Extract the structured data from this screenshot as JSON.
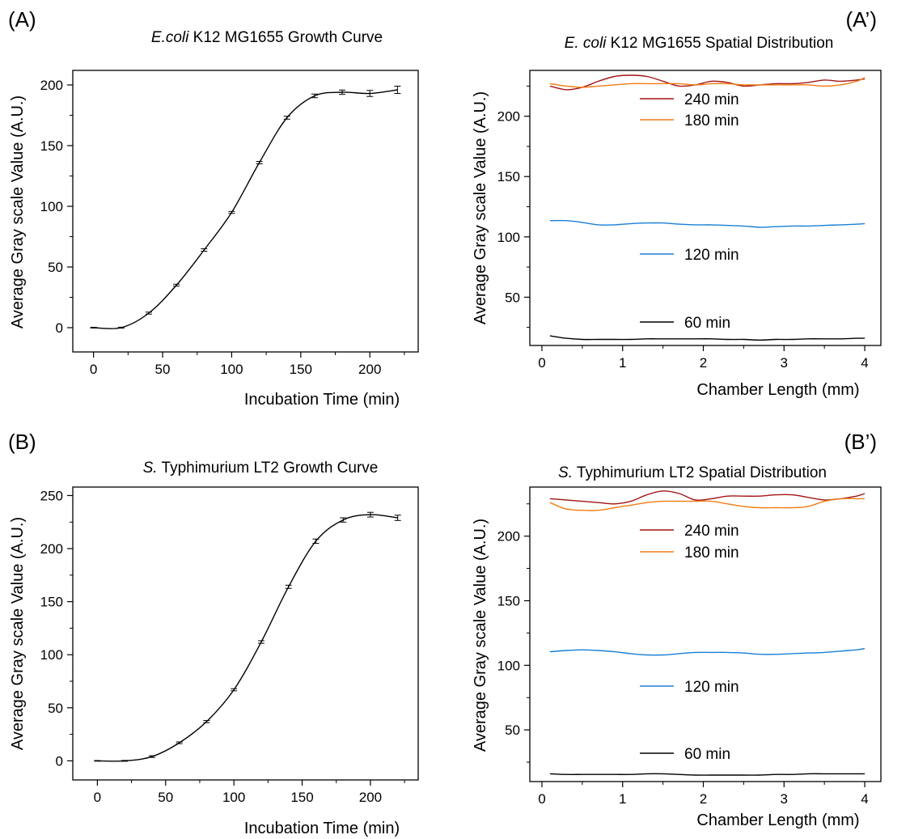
{
  "chart_data": [
    {
      "type": "line",
      "panel_label": "(A)",
      "title_italic": "E.coli",
      "title": " K12 MG1655 Growth Curve",
      "xlabel": "Incubation Time (min)",
      "ylabel": "Average Gray scale Value (A.U.)",
      "xlim": [
        -15,
        235
      ],
      "ylim": [
        -20,
        212
      ],
      "xticks": [
        0,
        50,
        100,
        150,
        200
      ],
      "yticks": [
        0,
        50,
        100,
        150,
        200
      ],
      "error_bars": true,
      "series": [
        {
          "color": "#000000",
          "x": [
            0,
            20,
            40,
            60,
            80,
            100,
            120,
            140,
            160,
            180,
            200,
            220
          ],
          "values": [
            0,
            0,
            12,
            35,
            64,
            95,
            136,
            173,
            191,
            194,
            193,
            196
          ],
          "errors": [
            0.3,
            0.4,
            0.8,
            0.8,
            1.0,
            0.8,
            1.0,
            1.2,
            1.5,
            1.8,
            2.5,
            3.0
          ]
        }
      ]
    },
    {
      "type": "line",
      "panel_label": "(A’)",
      "title_italic": "E. coli",
      "title": " K12 MG1655 Spatial Distribution",
      "xlabel": "Chamber Length (mm)",
      "ylabel": "Average Gray scale Value (A.U.)",
      "xlim": [
        -0.15,
        4.2
      ],
      "ylim": [
        10,
        238
      ],
      "xticks": [
        0,
        1,
        2,
        3,
        4
      ],
      "yticks": [
        50,
        100,
        150,
        200
      ],
      "series": [
        {
          "name": "240 min",
          "color": "#a31515",
          "x": [
            0.1,
            0.3,
            0.5,
            0.7,
            0.9,
            1.1,
            1.3,
            1.5,
            1.7,
            1.9,
            2.1,
            2.3,
            2.5,
            2.7,
            2.9,
            3.1,
            3.3,
            3.5,
            3.7,
            3.9,
            4.0
          ],
          "values": [
            225,
            222,
            224,
            229,
            233,
            234,
            233,
            229,
            225,
            226,
            229,
            228,
            225,
            226,
            227,
            227,
            228,
            230,
            229,
            230,
            231
          ]
        },
        {
          "name": "180 min",
          "color": "#f07c12",
          "x": [
            0.1,
            0.3,
            0.5,
            0.7,
            0.9,
            1.1,
            1.3,
            1.5,
            1.7,
            1.9,
            2.1,
            2.3,
            2.5,
            2.7,
            2.9,
            3.1,
            3.3,
            3.5,
            3.7,
            3.9,
            4.0
          ],
          "values": [
            227,
            225,
            224,
            225,
            226,
            227,
            227,
            227,
            227,
            226,
            227,
            227,
            226,
            226,
            226,
            226,
            226,
            225,
            226,
            229,
            232
          ]
        },
        {
          "name": "120 min",
          "color": "#1a7fd6",
          "x": [
            0.1,
            0.3,
            0.5,
            0.7,
            0.9,
            1.1,
            1.3,
            1.5,
            1.7,
            1.9,
            2.1,
            2.3,
            2.5,
            2.7,
            2.9,
            3.1,
            3.3,
            3.5,
            3.7,
            3.9,
            4.0
          ],
          "values": [
            113.5,
            113.5,
            112,
            110,
            110,
            111,
            111.5,
            111.5,
            110.5,
            110,
            110,
            109.5,
            109,
            108,
            108.5,
            109,
            109,
            109.5,
            110,
            110.5,
            111
          ]
        },
        {
          "name": "60 min",
          "color": "#000000",
          "x": [
            0.1,
            0.3,
            0.5,
            0.7,
            0.9,
            1.1,
            1.3,
            1.5,
            1.7,
            1.9,
            2.1,
            2.3,
            2.5,
            2.7,
            2.9,
            3.1,
            3.3,
            3.5,
            3.7,
            3.9,
            4.0
          ],
          "values": [
            18,
            16,
            15,
            15,
            15,
            15,
            15.5,
            15.5,
            15.5,
            15.5,
            15.5,
            15,
            15,
            14.5,
            15,
            15,
            15.5,
            15.5,
            15.5,
            16,
            16
          ]
        }
      ]
    },
    {
      "type": "line",
      "panel_label": "(B)",
      "title_italic": "S.",
      "title": " Typhimurium LT2 Growth Curve",
      "xlabel": "Incubation Time (min)",
      "ylabel": "Average Gray scale Value (A.U.)",
      "xlim": [
        -18,
        235
      ],
      "ylim": [
        -18,
        258
      ],
      "xticks": [
        0,
        50,
        100,
        150,
        200
      ],
      "yticks": [
        0,
        50,
        100,
        150,
        200,
        250
      ],
      "error_bars": true,
      "series": [
        {
          "color": "#000000",
          "x": [
            0,
            20,
            40,
            60,
            80,
            100,
            120,
            140,
            160,
            180,
            200,
            220
          ],
          "values": [
            0,
            0,
            4,
            17,
            37,
            67,
            112,
            164,
            207,
            227,
            232,
            229
          ],
          "errors": [
            0.3,
            0.4,
            0.8,
            0.8,
            1.0,
            1.0,
            1.2,
            1.5,
            2.0,
            2.0,
            2.2,
            2.5
          ]
        }
      ]
    },
    {
      "type": "line",
      "panel_label": "(B’)",
      "title_italic": "S.",
      "title": " Typhimurium LT2 Spatial Distribution",
      "xlabel": "Chamber Length (mm)",
      "ylabel": "Average Gray scale Value (A.U.)",
      "xlim": [
        -0.15,
        4.2
      ],
      "ylim": [
        10,
        238
      ],
      "xticks": [
        0,
        1,
        2,
        3,
        4
      ],
      "yticks": [
        50,
        100,
        150,
        200
      ],
      "series": [
        {
          "name": "240 min",
          "color": "#a31515",
          "x": [
            0.1,
            0.3,
            0.5,
            0.7,
            0.9,
            1.1,
            1.3,
            1.5,
            1.7,
            1.9,
            2.1,
            2.3,
            2.5,
            2.7,
            2.9,
            3.1,
            3.3,
            3.5,
            3.7,
            3.9,
            4.0
          ],
          "values": [
            229,
            228,
            227,
            226,
            225,
            227,
            232,
            235,
            233,
            228,
            229,
            231,
            231,
            231,
            232,
            232,
            230,
            228,
            229,
            231,
            233
          ]
        },
        {
          "name": "180 min",
          "color": "#f07c12",
          "x": [
            0.1,
            0.3,
            0.5,
            0.7,
            0.9,
            1.1,
            1.3,
            1.5,
            1.7,
            1.9,
            2.1,
            2.3,
            2.5,
            2.7,
            2.9,
            3.1,
            3.3,
            3.5,
            3.7,
            3.9,
            4.0
          ],
          "values": [
            226,
            221,
            220,
            220,
            222,
            224,
            226,
            227,
            227,
            227,
            227,
            225,
            223,
            222,
            222,
            222,
            223,
            227,
            229,
            229,
            229
          ]
        },
        {
          "name": "120 min",
          "color": "#1a7fd6",
          "x": [
            0.1,
            0.3,
            0.5,
            0.7,
            0.9,
            1.1,
            1.3,
            1.5,
            1.7,
            1.9,
            2.1,
            2.3,
            2.5,
            2.7,
            2.9,
            3.1,
            3.3,
            3.5,
            3.7,
            3.9,
            4.0
          ],
          "values": [
            110.5,
            111.5,
            112,
            111.5,
            110.5,
            109,
            108,
            108,
            109,
            110,
            110,
            110,
            109.5,
            108.5,
            108.5,
            109,
            109.5,
            110,
            111,
            112,
            113
          ]
        },
        {
          "name": "60 min",
          "color": "#000000",
          "x": [
            0.1,
            0.3,
            0.5,
            0.7,
            0.9,
            1.1,
            1.3,
            1.5,
            1.7,
            1.9,
            2.1,
            2.3,
            2.5,
            2.7,
            2.9,
            3.1,
            3.3,
            3.5,
            3.7,
            3.9,
            4.0
          ],
          "values": [
            16,
            15.5,
            15.5,
            15.5,
            15.5,
            15.5,
            16,
            16,
            15.5,
            15,
            15,
            15,
            15,
            15,
            15.5,
            15.5,
            16,
            16,
            16,
            16,
            16
          ]
        }
      ]
    }
  ]
}
